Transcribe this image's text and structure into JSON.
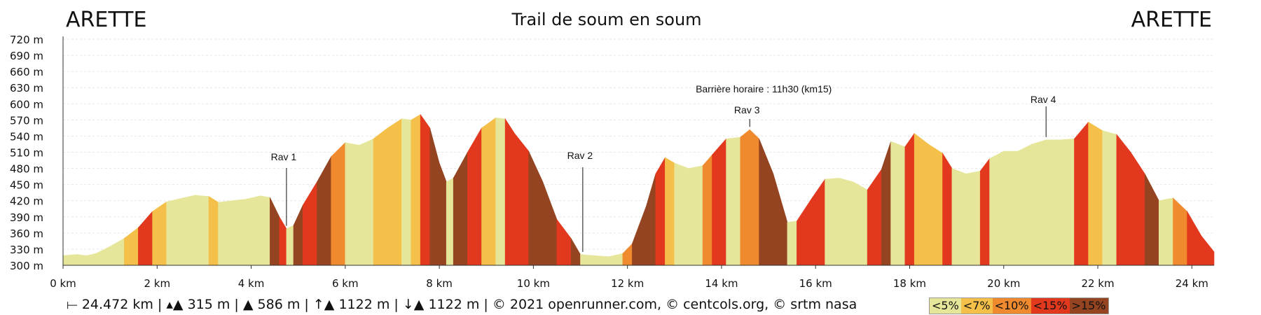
{
  "chart_data": {
    "type": "area",
    "title": "Trail de soum en soum",
    "start_label": "ARETTE",
    "end_label": "ARETTE",
    "xlim": [
      0,
      24.472
    ],
    "ylim": [
      300,
      720
    ],
    "x_ticks": [
      0,
      2,
      4,
      6,
      8,
      10,
      12,
      14,
      16,
      18,
      20,
      22,
      24
    ],
    "x_tick_labels": [
      "0 km",
      "2 km",
      "4 km",
      "6 km",
      "8 km",
      "10 km",
      "12 km",
      "14 km",
      "16 km",
      "18 km",
      "20 km",
      "22 km",
      "24 km"
    ],
    "y_ticks": [
      300,
      330,
      360,
      390,
      420,
      450,
      480,
      510,
      540,
      570,
      600,
      630,
      660,
      690,
      720
    ],
    "y_tick_labels": [
      "300 m",
      "330 m",
      "360 m",
      "390 m",
      "420 m",
      "450 m",
      "480 m",
      "510 m",
      "540 m",
      "570 m",
      "600 m",
      "630 m",
      "660 m",
      "690 m",
      "720 m"
    ],
    "grid": true,
    "profile": [
      [
        0,
        318
      ],
      [
        0.3,
        320
      ],
      [
        0.5,
        318
      ],
      [
        0.7,
        322
      ],
      [
        1.0,
        335
      ],
      [
        1.3,
        350
      ],
      [
        1.6,
        370
      ],
      [
        1.9,
        400
      ],
      [
        2.2,
        418
      ],
      [
        2.5,
        424
      ],
      [
        2.8,
        430
      ],
      [
        3.1,
        428
      ],
      [
        3.3,
        417
      ],
      [
        3.6,
        420
      ],
      [
        3.9,
        423
      ],
      [
        4.2,
        429
      ],
      [
        4.4,
        426
      ],
      [
        4.6,
        390
      ],
      [
        4.75,
        368
      ],
      [
        4.9,
        374
      ],
      [
        5.1,
        412
      ],
      [
        5.4,
        455
      ],
      [
        5.7,
        502
      ],
      [
        6.0,
        528
      ],
      [
        6.3,
        523
      ],
      [
        6.6,
        535
      ],
      [
        6.9,
        555
      ],
      [
        7.2,
        572
      ],
      [
        7.4,
        570
      ],
      [
        7.6,
        580
      ],
      [
        7.8,
        555
      ],
      [
        8.0,
        490
      ],
      [
        8.15,
        455
      ],
      [
        8.3,
        462
      ],
      [
        8.6,
        510
      ],
      [
        8.9,
        555
      ],
      [
        9.2,
        574
      ],
      [
        9.4,
        572
      ],
      [
        9.6,
        545
      ],
      [
        9.9,
        512
      ],
      [
        10.2,
        455
      ],
      [
        10.5,
        385
      ],
      [
        10.8,
        350
      ],
      [
        11.0,
        320
      ],
      [
        11.3,
        318
      ],
      [
        11.6,
        316
      ],
      [
        11.9,
        322
      ],
      [
        12.1,
        340
      ],
      [
        12.4,
        410
      ],
      [
        12.6,
        470
      ],
      [
        12.8,
        500
      ],
      [
        13.0,
        490
      ],
      [
        13.3,
        480
      ],
      [
        13.6,
        485
      ],
      [
        13.8,
        505
      ],
      [
        14.1,
        535
      ],
      [
        14.4,
        538
      ],
      [
        14.6,
        552
      ],
      [
        14.8,
        535
      ],
      [
        15.1,
        470
      ],
      [
        15.4,
        380
      ],
      [
        15.6,
        382
      ],
      [
        15.9,
        422
      ],
      [
        16.2,
        460
      ],
      [
        16.5,
        462
      ],
      [
        16.8,
        455
      ],
      [
        17.1,
        440
      ],
      [
        17.4,
        478
      ],
      [
        17.6,
        530
      ],
      [
        17.9,
        520
      ],
      [
        18.1,
        545
      ],
      [
        18.4,
        525
      ],
      [
        18.7,
        508
      ],
      [
        18.9,
        480
      ],
      [
        19.2,
        470
      ],
      [
        19.5,
        475
      ],
      [
        19.7,
        498
      ],
      [
        20.0,
        512
      ],
      [
        20.3,
        512
      ],
      [
        20.6,
        525
      ],
      [
        20.9,
        533
      ],
      [
        21.2,
        533
      ],
      [
        21.5,
        535
      ],
      [
        21.8,
        566
      ],
      [
        22.1,
        550
      ],
      [
        22.4,
        543
      ],
      [
        22.7,
        510
      ],
      [
        23.0,
        470
      ],
      [
        23.3,
        420
      ],
      [
        23.6,
        425
      ],
      [
        23.9,
        400
      ],
      [
        24.2,
        355
      ],
      [
        24.472,
        325
      ]
    ],
    "gradient_classes": [
      {
        "label": "<5%",
        "color": "#e6e69a"
      },
      {
        "label": "<7%",
        "color": "#f4c04a"
      },
      {
        "label": "<10%",
        "color": "#ef8a2e"
      },
      {
        "label": "<15%",
        "color": "#e2391e"
      },
      {
        "label": ">15%",
        "color": "#944421"
      }
    ],
    "annotations": [
      {
        "label": "Rav 1",
        "km": 4.75
      },
      {
        "label": "Rav 2",
        "km": 11.05
      },
      {
        "label": "Rav 3",
        "km": 14.6
      },
      {
        "label": "Rav 4",
        "km": 20.9
      },
      {
        "label": "Barrière horaire : 11h30 (km15)",
        "km": 14.6
      }
    ]
  },
  "footer": {
    "distance": "24.472 km",
    "min_alt": "315 m",
    "max_alt": "586 m",
    "ascent": "1122 m",
    "descent": "1122 m",
    "credits": "© 2021 openrunner.com, © centcols.org, © srtm nasa"
  }
}
